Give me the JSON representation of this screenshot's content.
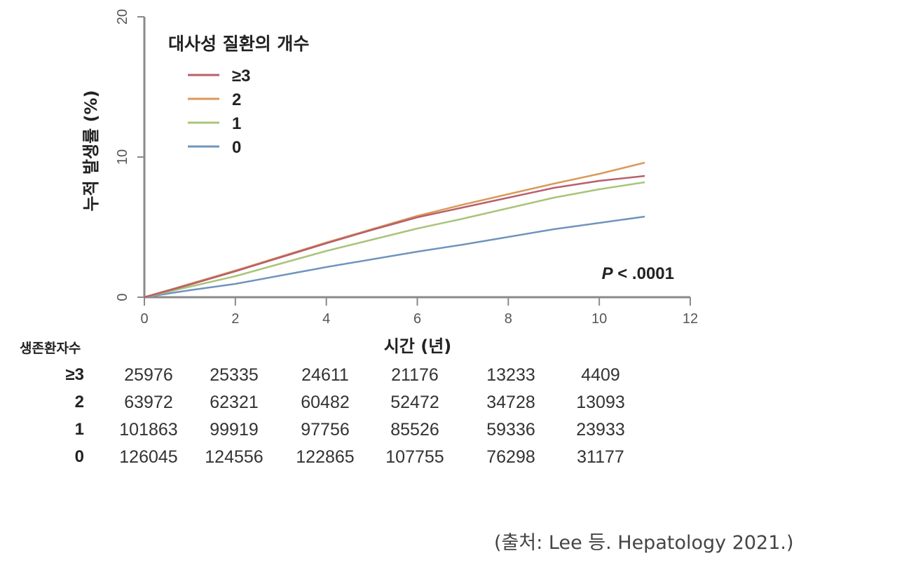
{
  "chart_data": {
    "type": "line",
    "title": "",
    "legend_title": "대사성 질환의 개수",
    "xlabel": "시간 (년)",
    "ylabel": "누적 발생률 (%)",
    "xlim": [
      0,
      12
    ],
    "ylim": [
      0,
      20
    ],
    "x_ticks": [
      0,
      2,
      4,
      6,
      8,
      10,
      12
    ],
    "y_ticks": [
      0,
      10,
      20
    ],
    "grid": false,
    "legend_position": "upper-left",
    "annotation": "P < .0001",
    "x": [
      0,
      1,
      2,
      3,
      4,
      5,
      6,
      7,
      8,
      9,
      10,
      11
    ],
    "series": [
      {
        "name": "≥3",
        "color": "#b85f6b",
        "values": [
          0,
          0.9,
          1.85,
          2.85,
          3.85,
          4.8,
          5.7,
          6.4,
          7.1,
          7.8,
          8.3,
          8.65
        ]
      },
      {
        "name": "2",
        "color": "#d99a5a",
        "values": [
          0,
          0.95,
          1.9,
          2.9,
          3.9,
          4.85,
          5.8,
          6.6,
          7.35,
          8.1,
          8.8,
          9.6
        ]
      },
      {
        "name": "1",
        "color": "#a9c47a",
        "values": [
          0,
          0.75,
          1.5,
          2.4,
          3.3,
          4.1,
          4.9,
          5.6,
          6.35,
          7.1,
          7.7,
          8.2
        ]
      },
      {
        "name": "0",
        "color": "#6f95bd",
        "values": [
          0,
          0.5,
          0.95,
          1.55,
          2.15,
          2.7,
          3.25,
          3.75,
          4.3,
          4.85,
          5.3,
          5.75
        ]
      }
    ],
    "risk_table": {
      "title": "생존환자수",
      "time_points": [
        0,
        2,
        4,
        6,
        8,
        10
      ],
      "rows": [
        {
          "group": "≥3",
          "values": [
            "25976",
            "25335",
            "24611",
            "21176",
            "13233",
            "4409"
          ]
        },
        {
          "group": "2",
          "values": [
            "63972",
            "62321",
            "60482",
            "52472",
            "34728",
            "13093"
          ]
        },
        {
          "group": "1",
          "values": [
            "101863",
            "99919",
            "97756",
            "85526",
            "59336",
            "23933"
          ]
        },
        {
          "group": "0",
          "values": [
            "126045",
            "124556",
            "122865",
            "107755",
            "76298",
            "31177"
          ]
        }
      ]
    }
  },
  "source": "(출처: Lee  등. Hepatology 2021.)"
}
